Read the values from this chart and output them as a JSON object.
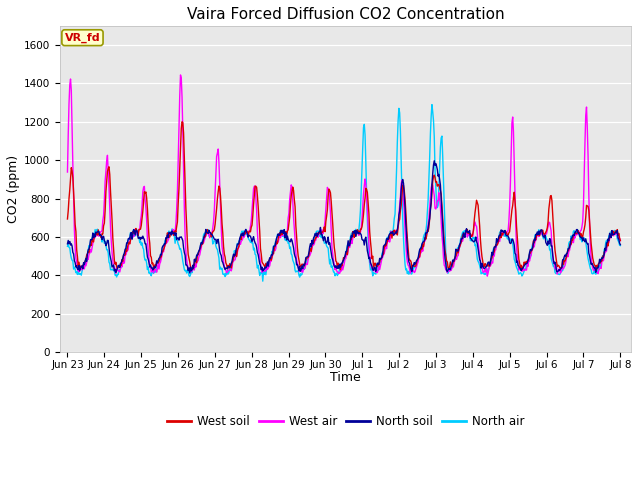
{
  "title": "Vaira Forced Diffusion CO2 Concentration",
  "xlabel": "Time",
  "ylabel": "CO2 (ppm)",
  "ylim": [
    0,
    1700
  ],
  "yticks": [
    0,
    200,
    400,
    600,
    800,
    1000,
    1200,
    1400,
    1600
  ],
  "legend_entries": [
    "West soil",
    "West air",
    "North soil",
    "North air"
  ],
  "colors": {
    "west_soil": "#dd0000",
    "west_air": "#ff00ff",
    "north_soil": "#000099",
    "north_air": "#00ccff"
  },
  "annotation_label": "VR_fd",
  "annotation_color": "#cc0000",
  "annotation_bg": "#ffffcc",
  "annotation_border": "#999900",
  "background_color": "#e8e8e8",
  "line_width": 1.0,
  "title_fontsize": 11,
  "tick_fontsize": 7.5,
  "ylabel_fontsize": 9,
  "xlabel_fontsize": 9,
  "legend_fontsize": 8.5
}
